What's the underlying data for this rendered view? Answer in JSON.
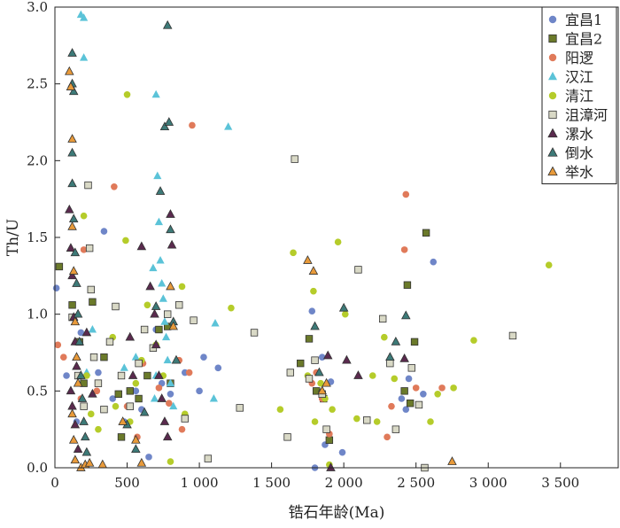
{
  "chart_data": {
    "type": "scatter",
    "title": "",
    "xlabel": "锆石年龄(Ma)",
    "ylabel": "Th/U",
    "xlim": [
      0,
      3900
    ],
    "ylim": [
      0,
      3.0
    ],
    "x_ticks": [
      0,
      500,
      1000,
      1500,
      2000,
      2500,
      3000,
      3500
    ],
    "x_tick_labels": [
      "0",
      "500",
      "1 000",
      "1 500",
      "2 000",
      "2 500",
      "3 000",
      "3 500"
    ],
    "y_ticks": [
      0,
      0.5,
      1.0,
      1.5,
      2.0,
      2.5,
      3.0
    ],
    "y_tick_labels": [
      "0.0",
      "0.5",
      "1.0",
      "1.5",
      "2.0",
      "2.5",
      "3.0"
    ],
    "grid": false,
    "legend_position": "top-right",
    "series": [
      {
        "name": "宜昌1",
        "marker": "circle",
        "color": "#6f86c8",
        "points": [
          [
            10,
            1.17
          ],
          [
            80,
            0.6
          ],
          [
            150,
            0.3
          ],
          [
            180,
            0.88
          ],
          [
            300,
            0.62
          ],
          [
            340,
            1.54
          ],
          [
            400,
            0.45
          ],
          [
            480,
            0.3
          ],
          [
            560,
            0.5
          ],
          [
            600,
            0.38
          ],
          [
            650,
            0.07
          ],
          [
            700,
            0.9
          ],
          [
            740,
            0.55
          ],
          [
            800,
            0.48
          ],
          [
            900,
            0.62
          ],
          [
            1000,
            0.5
          ],
          [
            1030,
            0.72
          ],
          [
            1130,
            0.65
          ],
          [
            1780,
            1.02
          ],
          [
            1800,
            0.0
          ],
          [
            1820,
            0.5
          ],
          [
            1850,
            0.72
          ],
          [
            1870,
            0.15
          ],
          [
            1910,
            0.56
          ],
          [
            1990,
            0.1
          ],
          [
            2400,
            0.45
          ],
          [
            2450,
            0.58
          ],
          [
            2550,
            0.48
          ],
          [
            2620,
            1.34
          ],
          [
            2430,
            0.38
          ]
        ]
      },
      {
        "name": "宜昌2",
        "marker": "square",
        "color": "#6b7a2a",
        "points": [
          [
            30,
            1.31
          ],
          [
            120,
            1.06
          ],
          [
            170,
            0.82
          ],
          [
            200,
            0.55
          ],
          [
            260,
            1.08
          ],
          [
            340,
            0.72
          ],
          [
            440,
            0.48
          ],
          [
            460,
            0.2
          ],
          [
            520,
            0.5
          ],
          [
            580,
            0.45
          ],
          [
            640,
            0.6
          ],
          [
            720,
            0.9
          ],
          [
            780,
            0.92
          ],
          [
            800,
            0.55
          ],
          [
            1760,
            0.84
          ],
          [
            1700,
            0.68
          ],
          [
            1810,
            0.5
          ],
          [
            1860,
            0.45
          ],
          [
            1900,
            0.18
          ],
          [
            2440,
            1.19
          ],
          [
            2490,
            0.82
          ],
          [
            2570,
            1.53
          ],
          [
            2420,
            0.5
          ],
          [
            2460,
            0.42
          ]
        ]
      },
      {
        "name": "阳逻",
        "marker": "circle",
        "color": "#e07a5a",
        "points": [
          [
            20,
            0.8
          ],
          [
            60,
            0.72
          ],
          [
            180,
            0.45
          ],
          [
            200,
            1.42
          ],
          [
            290,
            0.5
          ],
          [
            410,
            1.83
          ],
          [
            500,
            0.4
          ],
          [
            570,
            0.2
          ],
          [
            610,
            0.68
          ],
          [
            720,
            0.52
          ],
          [
            790,
            0.42
          ],
          [
            860,
            0.7
          ],
          [
            880,
            0.25
          ],
          [
            930,
            0.62
          ],
          [
            950,
            2.23
          ],
          [
            1780,
            0.55
          ],
          [
            1810,
            0.62
          ],
          [
            1850,
            0.45
          ],
          [
            1900,
            0.22
          ],
          [
            2300,
            0.2
          ],
          [
            2330,
            0.4
          ],
          [
            2430,
            1.78
          ],
          [
            2420,
            1.42
          ],
          [
            2500,
            0.52
          ],
          [
            2680,
            0.52
          ]
        ]
      },
      {
        "name": "汉江",
        "marker": "triangle",
        "color": "#5bc3d8",
        "points": [
          [
            180,
            2.95
          ],
          [
            200,
            2.93
          ],
          [
            200,
            2.67
          ],
          [
            220,
            0.62
          ],
          [
            260,
            0.9
          ],
          [
            480,
            0.65
          ],
          [
            560,
            0.72
          ],
          [
            680,
            1.3
          ],
          [
            700,
            2.43
          ],
          [
            710,
            1.9
          ],
          [
            720,
            1.6
          ],
          [
            730,
            1.35
          ],
          [
            740,
            1.2
          ],
          [
            750,
            1.1
          ],
          [
            760,
            0.95
          ],
          [
            770,
            0.85
          ],
          [
            780,
            0.7
          ],
          [
            800,
            0.55
          ],
          [
            820,
            0.4
          ],
          [
            700,
            0.6
          ],
          [
            690,
            0.45
          ],
          [
            1110,
            0.94
          ],
          [
            1200,
            2.22
          ],
          [
            1100,
            0.45
          ]
        ]
      },
      {
        "name": "清江",
        "marker": "circle",
        "color": "#b5cc2a",
        "points": [
          [
            200,
            1.64
          ],
          [
            220,
            0.6
          ],
          [
            250,
            0.35
          ],
          [
            300,
            0.25
          ],
          [
            400,
            0.85
          ],
          [
            420,
            0.4
          ],
          [
            490,
            1.48
          ],
          [
            500,
            2.43
          ],
          [
            520,
            0.3
          ],
          [
            560,
            0.55
          ],
          [
            600,
            0.7
          ],
          [
            640,
            1.06
          ],
          [
            700,
            0.8
          ],
          [
            750,
            0.6
          ],
          [
            800,
            0.04
          ],
          [
            880,
            1.18
          ],
          [
            900,
            0.35
          ],
          [
            1220,
            1.04
          ],
          [
            1560,
            0.38
          ],
          [
            1650,
            1.4
          ],
          [
            1750,
            0.6
          ],
          [
            1790,
            1.15
          ],
          [
            1800,
            0.3
          ],
          [
            1840,
            0.55
          ],
          [
            1870,
            0.45
          ],
          [
            1920,
            0.38
          ],
          [
            1960,
            1.47
          ],
          [
            2010,
            1.0
          ],
          [
            2090,
            0.32
          ],
          [
            2200,
            0.6
          ],
          [
            2230,
            0.3
          ],
          [
            2280,
            0.85
          ],
          [
            2350,
            0.58
          ],
          [
            2600,
            0.3
          ],
          [
            2650,
            0.48
          ],
          [
            2760,
            0.52
          ],
          [
            2900,
            0.83
          ],
          [
            3420,
            1.32
          ],
          [
            1900,
            0.02
          ]
        ]
      },
      {
        "name": "沮漳河",
        "marker": "square",
        "color": "#d9d9c6",
        "points": [
          [
            120,
            0.98
          ],
          [
            160,
            0.6
          ],
          [
            200,
            0.4
          ],
          [
            230,
            1.84
          ],
          [
            240,
            1.43
          ],
          [
            250,
            1.16
          ],
          [
            270,
            0.72
          ],
          [
            300,
            0.55
          ],
          [
            340,
            0.38
          ],
          [
            380,
            0.82
          ],
          [
            420,
            1.05
          ],
          [
            460,
            0.6
          ],
          [
            520,
            0.4
          ],
          [
            580,
            0.68
          ],
          [
            620,
            0.9
          ],
          [
            680,
            0.78
          ],
          [
            780,
            1.0
          ],
          [
            860,
            1.06
          ],
          [
            900,
            0.32
          ],
          [
            960,
            0.96
          ],
          [
            1060,
            0.06
          ],
          [
            1280,
            0.39
          ],
          [
            1380,
            0.88
          ],
          [
            1610,
            0.2
          ],
          [
            1630,
            0.62
          ],
          [
            1660,
            2.01
          ],
          [
            1760,
            0.58
          ],
          [
            1800,
            0.7
          ],
          [
            1850,
            0.48
          ],
          [
            1880,
            0.25
          ],
          [
            2100,
            1.29
          ],
          [
            2160,
            0.31
          ],
          [
            2270,
            0.97
          ],
          [
            2320,
            0.68
          ],
          [
            2360,
            0.25
          ],
          [
            2470,
            0.65
          ],
          [
            2520,
            0.41
          ],
          [
            2560,
            0.0
          ],
          [
            3170,
            0.86
          ]
        ]
      },
      {
        "name": "漯水",
        "marker": "triangle",
        "color": "#5a2a4e",
        "points": [
          [
            100,
            1.68
          ],
          [
            110,
            1.43
          ],
          [
            120,
            1.25
          ],
          [
            130,
            0.98
          ],
          [
            140,
            0.82
          ],
          [
            150,
            0.66
          ],
          [
            110,
            0.5
          ],
          [
            120,
            0.4
          ],
          [
            140,
            0.28
          ],
          [
            160,
            0.12
          ],
          [
            220,
            0.88
          ],
          [
            260,
            0.48
          ],
          [
            520,
            0.85
          ],
          [
            540,
            0.6
          ],
          [
            600,
            1.44
          ],
          [
            660,
            1.18
          ],
          [
            690,
            1.0
          ],
          [
            700,
            0.8
          ],
          [
            720,
            0.6
          ],
          [
            740,
            0.45
          ],
          [
            760,
            0.3
          ],
          [
            780,
            0.2
          ],
          [
            800,
            1.65
          ],
          [
            810,
            1.45
          ],
          [
            1890,
            0.73
          ],
          [
            1910,
            0.0
          ],
          [
            2020,
            0.7
          ],
          [
            2100,
            0.6
          ],
          [
            2420,
            0.71
          ]
        ]
      },
      {
        "name": "倒水",
        "marker": "triangle",
        "color": "#3d7a78",
        "points": [
          [
            120,
            2.7
          ],
          [
            120,
            2.5
          ],
          [
            130,
            2.45
          ],
          [
            120,
            2.05
          ],
          [
            120,
            1.85
          ],
          [
            130,
            1.62
          ],
          [
            140,
            1.4
          ],
          [
            150,
            1.2
          ],
          [
            160,
            1.0
          ],
          [
            170,
            0.82
          ],
          [
            180,
            0.6
          ],
          [
            190,
            0.45
          ],
          [
            200,
            0.3
          ],
          [
            210,
            0.2
          ],
          [
            220,
            0.1
          ],
          [
            500,
            0.28
          ],
          [
            560,
            0.12
          ],
          [
            620,
            0.36
          ],
          [
            700,
            1.05
          ],
          [
            730,
            1.8
          ],
          [
            760,
            2.22
          ],
          [
            790,
            2.25
          ],
          [
            780,
            2.88
          ],
          [
            800,
            1.55
          ],
          [
            820,
            0.95
          ],
          [
            840,
            0.7
          ],
          [
            1800,
            0.92
          ],
          [
            1830,
            0.62
          ],
          [
            2000,
            1.04
          ],
          [
            2320,
            0.72
          ],
          [
            2360,
            0.82
          ],
          [
            2430,
            0.99
          ]
        ]
      },
      {
        "name": "举水",
        "marker": "triangle",
        "color": "#e89a3a",
        "points": [
          [
            100,
            2.58
          ],
          [
            110,
            2.48
          ],
          [
            120,
            2.14
          ],
          [
            120,
            1.57
          ],
          [
            130,
            1.28
          ],
          [
            140,
            0.95
          ],
          [
            150,
            0.72
          ],
          [
            160,
            0.55
          ],
          [
            120,
            0.35
          ],
          [
            130,
            0.18
          ],
          [
            140,
            0.05
          ],
          [
            180,
            0.0
          ],
          [
            210,
            0.02
          ],
          [
            240,
            0.03
          ],
          [
            330,
            0.02
          ],
          [
            470,
            0.3
          ],
          [
            560,
            0.18
          ],
          [
            600,
            0.03
          ],
          [
            800,
            1.18
          ],
          [
            820,
            0.92
          ],
          [
            1750,
            1.35
          ],
          [
            1790,
            1.28
          ],
          [
            1850,
            0.5
          ],
          [
            1880,
            0.55
          ],
          [
            2750,
            0.04
          ]
        ]
      }
    ]
  }
}
